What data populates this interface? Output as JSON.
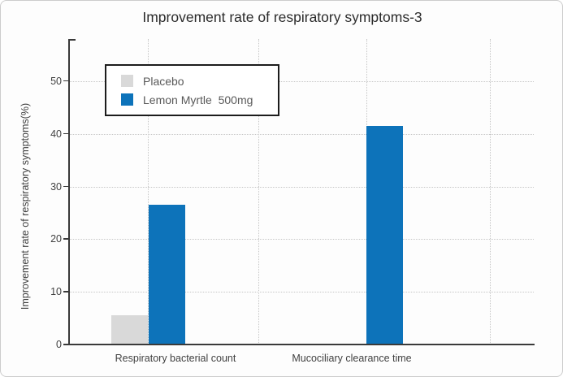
{
  "figure": {
    "title": "Improvement rate of respiratory symptoms-3"
  },
  "chart_data": {
    "type": "bar",
    "title": "Improvement rate of respiratory symptoms-3",
    "categories": [
      "Respiratory bacterial count",
      "Mucociliary clearance time"
    ],
    "series": [
      {
        "name": "Placebo",
        "color": "#d9d9d9",
        "values": [
          5.5,
          0
        ]
      },
      {
        "name": "Lemon Myrtle  500mg",
        "color": "#0d73ba",
        "values": [
          26.5,
          41.5
        ]
      }
    ],
    "xlabel": "",
    "ylabel": "Improvement rate of respiratory symptoms(%)",
    "ylim": [
      0,
      58
    ],
    "yticks": [
      0,
      10,
      20,
      30,
      40,
      50
    ],
    "grid": "dotted-horizontal-and-vertical",
    "legend_position": "upper-left-inside"
  },
  "colors": {
    "placebo_series": "#d9d9d9",
    "lemon_myrtle_series": "#0d73ba",
    "axis_line": "#3a3a3a",
    "gridline": "#c6c6c6",
    "tick_text": "#404040",
    "title_text": "#2b2b2b",
    "legend_text": "#595959",
    "legend_border": "#1c1c1c",
    "figure_border": "#cccccc"
  }
}
